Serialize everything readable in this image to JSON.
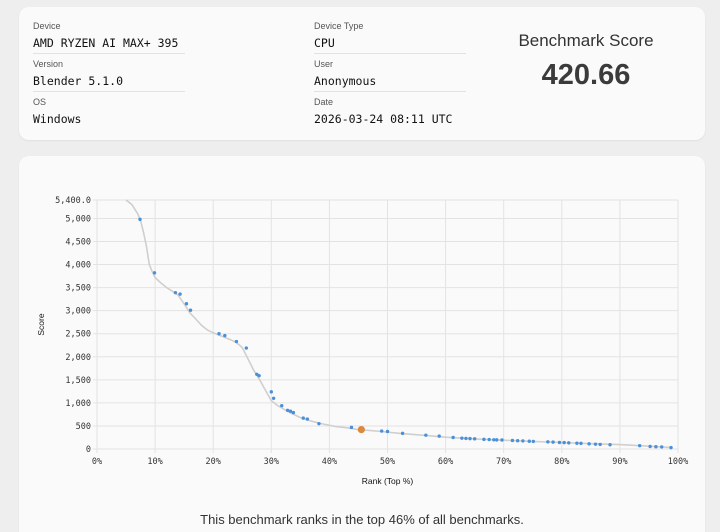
{
  "info": {
    "device": {
      "label": "Device",
      "value": "AMD RYZEN AI MAX+ 395"
    },
    "version": {
      "label": "Version",
      "value": "Blender 5.1.0"
    },
    "os": {
      "label": "OS",
      "value": "Windows"
    },
    "device_type": {
      "label": "Device Type",
      "value": "CPU"
    },
    "user": {
      "label": "User",
      "value": "Anonymous"
    },
    "date": {
      "label": "Date",
      "value": "2026-03-24 08:11 UTC"
    }
  },
  "score": {
    "title": "Benchmark Score",
    "value": "420.66"
  },
  "caption": "This benchmark ranks in the top 46% of all benchmarks.",
  "colors": {
    "point": "#4a90d9",
    "highlight": "#d98a3d",
    "curve": "#cfcfcf",
    "grid": "#e3e3e3"
  },
  "chart_data": {
    "type": "scatter",
    "xlabel": "Rank (Top %)",
    "ylabel": "Score",
    "xlim": [
      0,
      100
    ],
    "ylim": [
      0,
      5400
    ],
    "x_ticks": [
      "0%",
      "10%",
      "20%",
      "30%",
      "40%",
      "50%",
      "60%",
      "70%",
      "80%",
      "90%",
      "100%"
    ],
    "y_ticks": [
      "0",
      "500",
      "1,000",
      "1,500",
      "2,000",
      "2,500",
      "3,000",
      "3,500",
      "4,000",
      "4,500",
      "5,000",
      "5,400.0"
    ],
    "curve": [
      [
        5,
        5400
      ],
      [
        6,
        5300
      ],
      [
        7,
        5100
      ],
      [
        7.5,
        4950
      ],
      [
        8,
        4700
      ],
      [
        8.5,
        4400
      ],
      [
        9,
        4000
      ],
      [
        9.5,
        3850
      ],
      [
        10,
        3720
      ],
      [
        11,
        3600
      ],
      [
        12,
        3500
      ],
      [
        13,
        3420
      ],
      [
        14,
        3330
      ],
      [
        15,
        3150
      ],
      [
        16,
        2950
      ],
      [
        17,
        2820
      ],
      [
        18,
        2680
      ],
      [
        19,
        2580
      ],
      [
        20,
        2520
      ],
      [
        21,
        2470
      ],
      [
        22,
        2420
      ],
      [
        23,
        2370
      ],
      [
        24,
        2310
      ],
      [
        25,
        2200
      ],
      [
        26,
        1950
      ],
      [
        27,
        1700
      ],
      [
        28,
        1500
      ],
      [
        29,
        1270
      ],
      [
        30,
        1050
      ],
      [
        31,
        950
      ],
      [
        33,
        800
      ],
      [
        35,
        680
      ],
      [
        37,
        600
      ],
      [
        39,
        540
      ],
      [
        41,
        490
      ],
      [
        43,
        460
      ],
      [
        45,
        421
      ],
      [
        48,
        390
      ],
      [
        52,
        340
      ],
      [
        56,
        300
      ],
      [
        60,
        255
      ],
      [
        65,
        220
      ],
      [
        70,
        190
      ],
      [
        75,
        165
      ],
      [
        80,
        140
      ],
      [
        85,
        115
      ],
      [
        90,
        95
      ],
      [
        95,
        60
      ],
      [
        99,
        30
      ]
    ],
    "points": [
      [
        7.4,
        4980
      ],
      [
        9.9,
        3820
      ],
      [
        13.5,
        3390
      ],
      [
        14.3,
        3360
      ],
      [
        15.4,
        3150
      ],
      [
        16.1,
        3010
      ],
      [
        21,
        2500
      ],
      [
        22,
        2460
      ],
      [
        24,
        2330
      ],
      [
        25.7,
        2190
      ],
      [
        27.5,
        1620
      ],
      [
        27.9,
        1590
      ],
      [
        30,
        1240
      ],
      [
        30.4,
        1100
      ],
      [
        31.8,
        940
      ],
      [
        32.8,
        840
      ],
      [
        33.3,
        820
      ],
      [
        33.8,
        790
      ],
      [
        35.5,
        670
      ],
      [
        36.2,
        650
      ],
      [
        38.2,
        550
      ],
      [
        43.8,
        470
      ],
      [
        49,
        390
      ],
      [
        50,
        380
      ],
      [
        52.6,
        340
      ],
      [
        56.6,
        300
      ],
      [
        58.9,
        280
      ],
      [
        61.3,
        250
      ],
      [
        62.8,
        235
      ],
      [
        63.5,
        230
      ],
      [
        64.2,
        225
      ],
      [
        65,
        220
      ],
      [
        66.6,
        210
      ],
      [
        67.5,
        205
      ],
      [
        68.3,
        200
      ],
      [
        68.8,
        198
      ],
      [
        69.7,
        195
      ],
      [
        71.5,
        185
      ],
      [
        72.4,
        180
      ],
      [
        73.3,
        175
      ],
      [
        74.4,
        168
      ],
      [
        75.1,
        165
      ],
      [
        77.6,
        155
      ],
      [
        78.5,
        150
      ],
      [
        79.6,
        142
      ],
      [
        80.4,
        138
      ],
      [
        81.2,
        133
      ],
      [
        82.6,
        125
      ],
      [
        83.3,
        122
      ],
      [
        84.7,
        112
      ],
      [
        85.8,
        105
      ],
      [
        86.6,
        100
      ],
      [
        88.3,
        92
      ],
      [
        93.4,
        72
      ],
      [
        95.2,
        55
      ],
      [
        96.2,
        50
      ],
      [
        97.2,
        45
      ],
      [
        98.8,
        30
      ]
    ],
    "highlight": {
      "x": 45.5,
      "y": 420.66
    }
  }
}
